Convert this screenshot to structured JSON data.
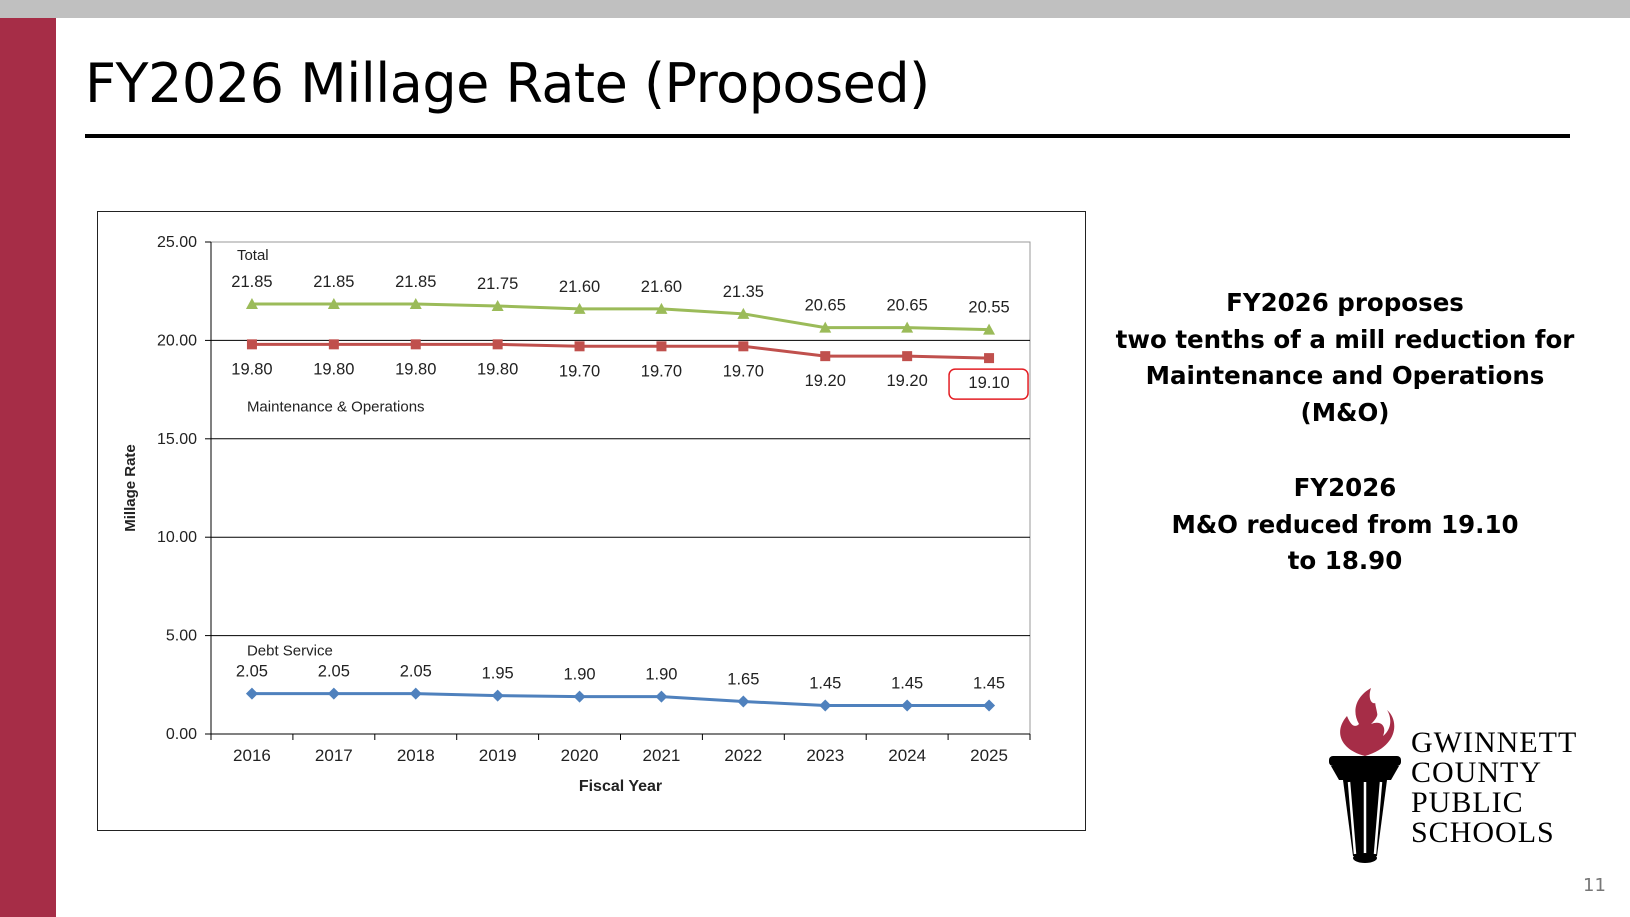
{
  "slide": {
    "title": "FY2026 Millage Rate (Proposed)",
    "page_number": "11"
  },
  "notes": {
    "first": [
      "FY2026 proposes",
      "two tenths of a mill reduction for",
      "Maintenance and Operations",
      "(M&O)"
    ],
    "second": [
      "FY2026",
      "M&O reduced from 19.10",
      "to 18.90"
    ]
  },
  "logo": {
    "lines": [
      "GWINNETT",
      "COUNTY",
      "PUBLIC",
      "SCHOOLS"
    ]
  },
  "colors": {
    "accent_bar": "#a62d47",
    "total": "#9bbb59",
    "mo": "#c0504d",
    "debt": "#4f81bd",
    "highlight": "#e31e24"
  },
  "chart_data": {
    "type": "line",
    "title": "",
    "xlabel": "Fiscal Year",
    "ylabel": "Millage Rate",
    "ylim": [
      0,
      25
    ],
    "yticks": [
      "0.00",
      "5.00",
      "10.00",
      "15.00",
      "20.00",
      "25.00"
    ],
    "categories": [
      "2016",
      "2017",
      "2018",
      "2019",
      "2020",
      "2021",
      "2022",
      "2023",
      "2024",
      "2025"
    ],
    "grid": true,
    "series": [
      {
        "name": "Total",
        "marker": "triangle",
        "color": "#9bbb59",
        "values": [
          21.85,
          21.85,
          21.85,
          21.75,
          21.6,
          21.6,
          21.35,
          20.65,
          20.65,
          20.55
        ],
        "labels": [
          "21.85",
          "21.85",
          "21.85",
          "21.75",
          "21.60",
          "21.60",
          "21.35",
          "20.65",
          "20.65",
          "20.55"
        ],
        "label_position": "above"
      },
      {
        "name": "Maintenance & Operations",
        "marker": "square",
        "color": "#c0504d",
        "values": [
          19.8,
          19.8,
          19.8,
          19.8,
          19.7,
          19.7,
          19.7,
          19.2,
          19.2,
          19.1
        ],
        "labels": [
          "19.80",
          "19.80",
          "19.80",
          "19.80",
          "19.70",
          "19.70",
          "19.70",
          "19.20",
          "19.20",
          "19.10"
        ],
        "label_position": "below",
        "highlight_index": 9
      },
      {
        "name": "Debt Service",
        "marker": "diamond",
        "color": "#4f81bd",
        "values": [
          2.05,
          2.05,
          2.05,
          1.95,
          1.9,
          1.9,
          1.65,
          1.45,
          1.45,
          1.45
        ],
        "labels": [
          "2.05",
          "2.05",
          "2.05",
          "1.95",
          "1.90",
          "1.90",
          "1.65",
          "1.45",
          "1.45",
          "1.45"
        ],
        "label_position": "above"
      }
    ]
  }
}
